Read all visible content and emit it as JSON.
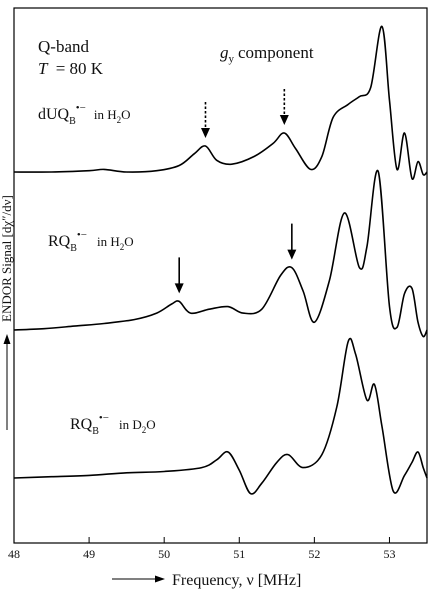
{
  "chart_data": {
    "type": "line",
    "title": "",
    "xlabel": "Frequency, ν [MHz]",
    "ylabel": "ENDOR Signal [dχ″/dν]",
    "xlim": [
      48,
      53.5
    ],
    "x_ticks": [
      48,
      49,
      50,
      51,
      52,
      53
    ],
    "y_ticks_shown": false,
    "grid": false,
    "legend": "none",
    "annotations": {
      "band": "Q-band",
      "temperature_symbol": "T",
      "temperature_value": "= 80 K",
      "component_symbol": "g",
      "component_subscript": "y",
      "component_text": "component"
    },
    "series": [
      {
        "label_main": "dUQ",
        "label_sub": "B",
        "label_sup": "•−",
        "label_solvent": "in H",
        "label_solvent_sub": "2",
        "label_solvent_end": "O",
        "arrow_style": "dashed",
        "arrows_at": [
          50.55,
          51.6
        ],
        "x": [
          48.0,
          48.5,
          49.0,
          49.2,
          49.5,
          49.9,
          50.2,
          50.4,
          50.55,
          50.7,
          50.9,
          51.2,
          51.45,
          51.6,
          51.75,
          51.95,
          52.1,
          52.25,
          52.45,
          52.6,
          52.75,
          52.9,
          53.0,
          53.1,
          53.2,
          53.3,
          53.38,
          53.45,
          53.5
        ],
        "y": [
          0.0,
          0.0,
          0.01,
          0.02,
          0.0,
          0.01,
          0.05,
          0.14,
          0.2,
          0.09,
          0.06,
          0.12,
          0.22,
          0.3,
          0.18,
          0.02,
          0.12,
          0.42,
          0.52,
          0.58,
          0.65,
          1.12,
          0.55,
          0.02,
          0.3,
          -0.05,
          0.08,
          -0.02,
          0.0
        ],
        "color": "#000000"
      },
      {
        "label_main": "RQ",
        "label_sub": "B",
        "label_sup": "•−",
        "label_solvent": "in H",
        "label_solvent_sub": "2",
        "label_solvent_end": "O",
        "arrow_style": "solid",
        "arrows_at": [
          50.2,
          51.7
        ],
        "x": [
          48.0,
          48.4,
          48.8,
          49.2,
          49.6,
          49.9,
          50.1,
          50.2,
          50.35,
          50.6,
          50.85,
          51.05,
          51.3,
          51.55,
          51.7,
          51.85,
          52.0,
          52.2,
          52.4,
          52.6,
          52.7,
          52.85,
          53.0,
          53.1,
          53.2,
          53.3,
          53.38,
          53.45,
          53.5
        ],
        "y": [
          0.0,
          0.01,
          0.03,
          0.05,
          0.08,
          0.13,
          0.2,
          0.22,
          0.13,
          0.16,
          0.18,
          0.13,
          0.16,
          0.42,
          0.48,
          0.3,
          0.06,
          0.38,
          0.9,
          0.48,
          0.64,
          1.22,
          0.18,
          0.02,
          0.28,
          0.32,
          0.06,
          -0.05,
          0.0
        ],
        "color": "#000000"
      },
      {
        "label_main": "RQ",
        "label_sub": "B",
        "label_sup": "•−",
        "label_solvent": "in D",
        "label_solvent_sub": "2",
        "label_solvent_end": "O",
        "arrow_style": "none",
        "arrows_at": [],
        "x": [
          48.0,
          48.5,
          49.0,
          49.5,
          50.0,
          50.5,
          50.7,
          50.85,
          51.0,
          51.15,
          51.3,
          51.5,
          51.65,
          51.85,
          52.1,
          52.3,
          52.45,
          52.55,
          52.7,
          52.8,
          52.9,
          53.05,
          53.2,
          53.3,
          53.38,
          53.45,
          53.5
        ],
        "y": [
          0.0,
          0.01,
          0.02,
          0.04,
          0.05,
          0.08,
          0.14,
          0.2,
          0.06,
          -0.12,
          -0.04,
          0.12,
          0.18,
          0.08,
          0.18,
          0.55,
          1.05,
          0.95,
          0.6,
          0.72,
          0.4,
          -0.1,
          0.02,
          0.12,
          0.2,
          0.08,
          0.0
        ],
        "color": "#000000"
      }
    ]
  }
}
